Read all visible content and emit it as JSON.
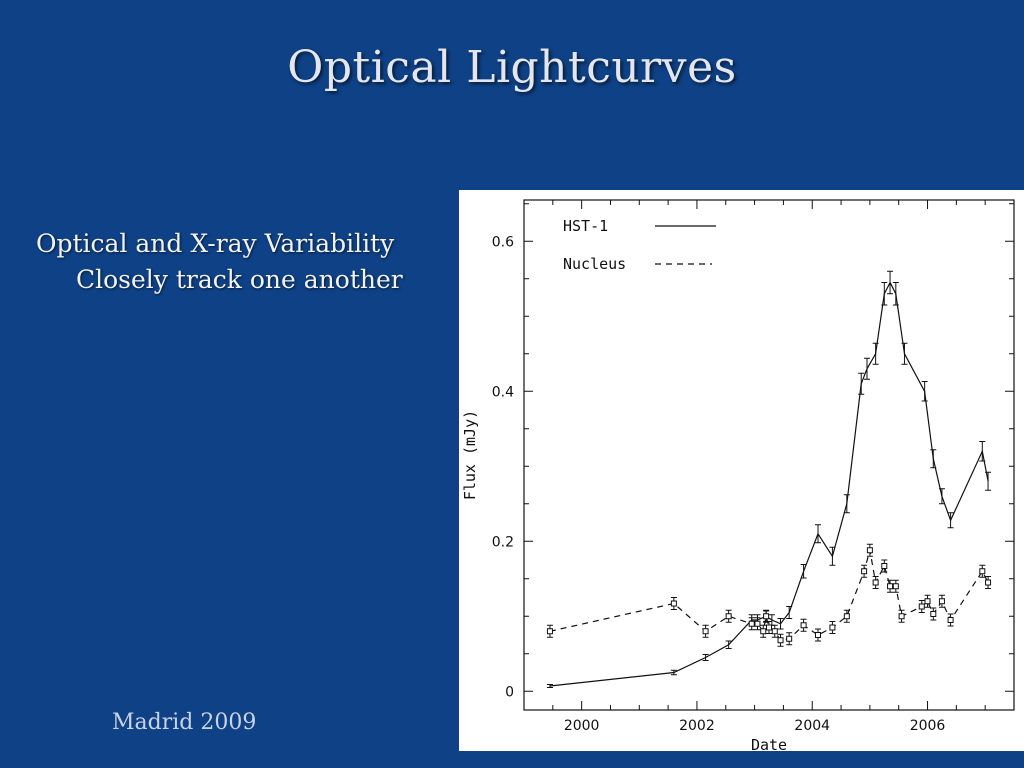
{
  "slide": {
    "title": "Optical Lightcurves",
    "bullet_line1": "Optical and X-ray Variability",
    "bullet_line2": "Closely track one another",
    "footer": "Madrid 2009"
  },
  "colors": {
    "background": "#0e4185",
    "plot_ink": "#111111"
  },
  "chart_data": {
    "type": "line",
    "xlabel": "Date",
    "ylabel": "Flux  (mJy)",
    "xlim": [
      1999.0,
      2007.5
    ],
    "ylim": [
      -0.025,
      0.655
    ],
    "xticks": [
      2000,
      2002,
      2004,
      2006
    ],
    "xtick_labels": [
      "2000",
      "2002",
      "2004",
      "2006"
    ],
    "yticks": [
      0,
      0.2,
      0.4,
      0.6
    ],
    "ytick_labels": [
      "0",
      "0.2",
      "0.4",
      "0.6"
    ],
    "grid": false,
    "legend_position": "top-left",
    "series": [
      {
        "name": "HST-1",
        "style": "solid",
        "x": [
          1999.45,
          2001.6,
          2002.15,
          2002.55,
          2002.95,
          2003.05,
          2003.2,
          2003.3,
          2003.45,
          2003.6,
          2003.85,
          2004.1,
          2004.35,
          2004.6,
          2004.85,
          2004.95,
          2005.1,
          2005.25,
          2005.35,
          2005.45,
          2005.6,
          2005.95,
          2006.1,
          2006.25,
          2006.4,
          2006.95,
          2007.05
        ],
        "y": [
          0.007,
          0.025,
          0.045,
          0.062,
          0.095,
          0.095,
          0.1,
          0.095,
          0.09,
          0.105,
          0.16,
          0.21,
          0.18,
          0.25,
          0.41,
          0.43,
          0.45,
          0.53,
          0.545,
          0.53,
          0.45,
          0.4,
          0.31,
          0.26,
          0.228,
          0.32,
          0.28
        ],
        "err": [
          0.002,
          0.003,
          0.004,
          0.005,
          0.007,
          0.007,
          0.007,
          0.007,
          0.007,
          0.008,
          0.009,
          0.012,
          0.012,
          0.012,
          0.014,
          0.014,
          0.014,
          0.015,
          0.015,
          0.015,
          0.014,
          0.013,
          0.012,
          0.01,
          0.01,
          0.013,
          0.012
        ]
      },
      {
        "name": "Nucleus",
        "style": "dashed",
        "x": [
          1999.45,
          2001.6,
          2002.15,
          2002.55,
          2002.95,
          2003.05,
          2003.15,
          2003.2,
          2003.25,
          2003.35,
          2003.45,
          2003.6,
          2003.85,
          2004.1,
          2004.35,
          2004.6,
          2004.9,
          2005.0,
          2005.1,
          2005.25,
          2005.35,
          2005.45,
          2005.55,
          2005.9,
          2006.0,
          2006.1,
          2006.25,
          2006.4,
          2006.95,
          2007.05
        ],
        "y": [
          0.08,
          0.117,
          0.08,
          0.1,
          0.09,
          0.09,
          0.08,
          0.1,
          0.085,
          0.08,
          0.068,
          0.07,
          0.088,
          0.075,
          0.085,
          0.1,
          0.16,
          0.188,
          0.145,
          0.167,
          0.14,
          0.14,
          0.1,
          0.113,
          0.12,
          0.103,
          0.12,
          0.095,
          0.16,
          0.145
        ]
      }
    ]
  }
}
